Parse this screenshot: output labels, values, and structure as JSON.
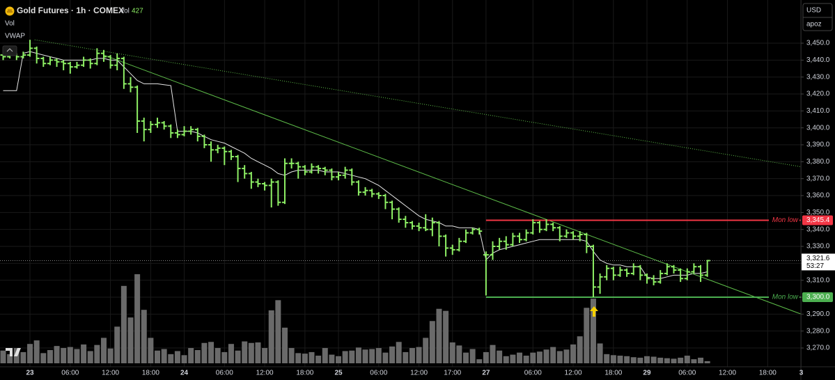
{
  "chart_data": {
    "type": "ohlc",
    "title": "Gold Futures · 1h · COMEX",
    "volume_label": "Vol",
    "indicators": [
      "Vol",
      "VWAP"
    ],
    "currency": "USD",
    "user": "apoz",
    "bar_color": "#8ef065",
    "volume_color": "#6a6a6a",
    "vwap_color": "#e8e8e8",
    "grid": true,
    "xlim": [
      -4.47,
      114.95
    ],
    "ylim": [
      3258.9,
      3475.5
    ],
    "volume_lim": [
      0,
      19000
    ],
    "yticks": [
      {
        "value": 3270,
        "label": "3,270.0"
      },
      {
        "value": 3280,
        "label": "3,280.0"
      },
      {
        "value": 3290,
        "label": "3,290.0"
      },
      {
        "value": 3300,
        "label": "3,300.0"
      },
      {
        "value": 3310,
        "label": "3,310.0"
      },
      {
        "value": 3320,
        "label": "3,320.0"
      },
      {
        "value": 3330,
        "label": "3,330.0"
      },
      {
        "value": 3340,
        "label": "3,340.0"
      },
      {
        "value": 3350,
        "label": "3,350.0"
      },
      {
        "value": 3360,
        "label": "3,360.0"
      },
      {
        "value": 3370,
        "label": "3,370.0"
      },
      {
        "value": 3380,
        "label": "3,380.0"
      },
      {
        "value": 3390,
        "label": "3,390.0"
      },
      {
        "value": 3400,
        "label": "3,400.0"
      },
      {
        "value": 3410,
        "label": "3,410.0"
      },
      {
        "value": 3420,
        "label": "3,420.0"
      },
      {
        "value": 3430,
        "label": "3,430.0"
      },
      {
        "value": 3440,
        "label": "3,440.0"
      },
      {
        "value": 3450,
        "label": "3,450.0"
      }
    ],
    "xticks": [
      {
        "value": 0,
        "label": "23"
      },
      {
        "value": 6,
        "label": "06:00"
      },
      {
        "value": 12,
        "label": "12:00"
      },
      {
        "value": 18,
        "label": "18:00"
      },
      {
        "value": 23,
        "label": "24"
      },
      {
        "value": 29,
        "label": "06:00"
      },
      {
        "value": 35,
        "label": "12:00"
      },
      {
        "value": 41,
        "label": "18:00"
      },
      {
        "value": 46,
        "label": "25"
      },
      {
        "value": 52,
        "label": "06:00"
      },
      {
        "value": 58,
        "label": "12:00"
      },
      {
        "value": 63,
        "label": "17:00"
      },
      {
        "value": 68,
        "label": "27"
      },
      {
        "value": 75,
        "label": "06:00"
      },
      {
        "value": 81,
        "label": "12:00"
      },
      {
        "value": 87,
        "label": "18:00"
      },
      {
        "value": 92,
        "label": "29"
      },
      {
        "value": 98,
        "label": "06:00"
      },
      {
        "value": 104,
        "label": "12:00"
      },
      {
        "value": 110,
        "label": "18:00"
      },
      {
        "value": 115,
        "label": "3"
      }
    ],
    "x": [
      -4,
      -3,
      -2,
      -1,
      0,
      1,
      2,
      3,
      4,
      5,
      6,
      7,
      8,
      9,
      10,
      11,
      12,
      13,
      14,
      15,
      16,
      17,
      18,
      19,
      20,
      21,
      22,
      23,
      24,
      25,
      26,
      27,
      28,
      29,
      30,
      31,
      32,
      33,
      34,
      35,
      36,
      37,
      38,
      39,
      40,
      41,
      42,
      43,
      44,
      45,
      46,
      47,
      48,
      49,
      50,
      51,
      52,
      53,
      54,
      55,
      56,
      57,
      58,
      59,
      60,
      61,
      62,
      63,
      64,
      65,
      66,
      67,
      68,
      69,
      70,
      71,
      72,
      73,
      74,
      75,
      76,
      77,
      78,
      79,
      80,
      81,
      82,
      83,
      84,
      85,
      86,
      87,
      88,
      89,
      90,
      91,
      92,
      93,
      94,
      95,
      96,
      97,
      98,
      99,
      100,
      101
    ],
    "ohlc": [
      [
        3443,
        3444,
        3440,
        3442
      ],
      [
        3442,
        3444,
        3441,
        3443
      ],
      [
        3443,
        3444,
        3440,
        3442
      ],
      [
        3442,
        3445,
        3441,
        3443
      ],
      [
        3443,
        3452,
        3442,
        3447
      ],
      [
        3447,
        3448,
        3438,
        3441
      ],
      [
        3441,
        3442,
        3436,
        3438
      ],
      [
        3438,
        3442,
        3437,
        3440
      ],
      [
        3440,
        3441,
        3436,
        3439
      ],
      [
        3439,
        3440,
        3434,
        3438
      ],
      [
        3438,
        3439,
        3432,
        3436
      ],
      [
        3436,
        3439,
        3435,
        3437
      ],
      [
        3437,
        3442,
        3436,
        3440
      ],
      [
        3440,
        3441,
        3435,
        3438
      ],
      [
        3438,
        3447,
        3437,
        3444
      ],
      [
        3444,
        3446,
        3439,
        3442
      ],
      [
        3442,
        3443,
        3435,
        3437
      ],
      [
        3437,
        3444,
        3434,
        3441
      ],
      [
        3441,
        3442,
        3423,
        3426
      ],
      [
        3426,
        3430,
        3421,
        3424
      ],
      [
        3424,
        3425,
        3397,
        3404
      ],
      [
        3404,
        3406,
        3392,
        3399
      ],
      [
        3399,
        3404,
        3397,
        3402
      ],
      [
        3402,
        3406,
        3400,
        3403
      ],
      [
        3403,
        3404,
        3399,
        3401
      ],
      [
        3401,
        3402,
        3394,
        3397
      ],
      [
        3397,
        3399,
        3394,
        3396
      ],
      [
        3396,
        3401,
        3395,
        3398
      ],
      [
        3398,
        3401,
        3396,
        3399
      ],
      [
        3399,
        3400,
        3392,
        3395
      ],
      [
        3395,
        3396,
        3388,
        3390
      ],
      [
        3390,
        3392,
        3380,
        3387
      ],
      [
        3387,
        3390,
        3385,
        3388
      ],
      [
        3388,
        3389,
        3378,
        3386
      ],
      [
        3386,
        3387,
        3381,
        3383
      ],
      [
        3383,
        3384,
        3368,
        3376
      ],
      [
        3376,
        3378,
        3370,
        3373
      ],
      [
        3373,
        3374,
        3364,
        3368
      ],
      [
        3368,
        3370,
        3365,
        3367
      ],
      [
        3367,
        3368,
        3363,
        3366
      ],
      [
        3366,
        3370,
        3353,
        3368
      ],
      [
        3368,
        3369,
        3354,
        3356
      ],
      [
        3356,
        3382,
        3355,
        3379
      ],
      [
        3379,
        3382,
        3376,
        3379
      ],
      [
        3379,
        3380,
        3370,
        3377
      ],
      [
        3377,
        3378,
        3372,
        3374
      ],
      [
        3374,
        3379,
        3373,
        3377
      ],
      [
        3377,
        3378,
        3373,
        3376
      ],
      [
        3376,
        3377,
        3372,
        3375
      ],
      [
        3375,
        3376,
        3369,
        3371
      ],
      [
        3371,
        3374,
        3369,
        3372
      ],
      [
        3372,
        3377,
        3370,
        3375
      ],
      [
        3375,
        3376,
        3366,
        3368
      ],
      [
        3368,
        3369,
        3360,
        3362
      ],
      [
        3362,
        3365,
        3360,
        3363
      ],
      [
        3363,
        3364,
        3359,
        3361
      ],
      [
        3361,
        3362,
        3358,
        3360
      ],
      [
        3360,
        3361,
        3352,
        3356
      ],
      [
        3356,
        3357,
        3346,
        3352
      ],
      [
        3352,
        3353,
        3344,
        3346
      ],
      [
        3346,
        3348,
        3341,
        3344
      ],
      [
        3344,
        3345,
        3340,
        3342
      ],
      [
        3342,
        3344,
        3339,
        3341
      ],
      [
        3341,
        3349,
        3339,
        3340
      ],
      [
        3340,
        3347,
        3336,
        3344
      ],
      [
        3344,
        3345,
        3330,
        3336
      ],
      [
        3336,
        3337,
        3324,
        3329
      ],
      [
        3329,
        3331,
        3325,
        3328
      ],
      [
        3328,
        3335,
        3327,
        3333
      ],
      [
        3333,
        3340,
        3332,
        3338
      ],
      [
        3338,
        3341,
        3337,
        3340
      ],
      [
        3340,
        3341,
        3337,
        3339
      ],
      [
        3325,
        3327,
        3301,
        3325
      ],
      [
        3325,
        3333,
        3322,
        3330
      ],
      [
        3330,
        3335,
        3328,
        3333
      ],
      [
        3333,
        3336,
        3328,
        3331
      ],
      [
        3331,
        3338,
        3330,
        3336
      ],
      [
        3336,
        3338,
        3332,
        3334
      ],
      [
        3334,
        3340,
        3333,
        3338
      ],
      [
        3338,
        3346,
        3337,
        3344
      ],
      [
        3344,
        3345,
        3338,
        3340
      ],
      [
        3340,
        3346,
        3339,
        3343
      ],
      [
        3343,
        3344,
        3339,
        3341
      ],
      [
        3341,
        3342,
        3333,
        3336
      ],
      [
        3336,
        3340,
        3335,
        3338
      ],
      [
        3338,
        3339,
        3334,
        3336
      ],
      [
        3336,
        3339,
        3333,
        3337
      ],
      [
        3337,
        3338,
        3326,
        3330
      ],
      [
        3330,
        3331,
        3300,
        3306
      ],
      [
        3306,
        3314,
        3302,
        3312
      ],
      [
        3312,
        3319,
        3310,
        3317
      ],
      [
        3317,
        3318,
        3310,
        3313
      ],
      [
        3313,
        3318,
        3312,
        3316
      ],
      [
        3316,
        3317,
        3312,
        3314
      ],
      [
        3314,
        3320,
        3313,
        3318
      ],
      [
        3318,
        3319,
        3310,
        3313
      ],
      [
        3313,
        3314,
        3308,
        3311
      ],
      [
        3311,
        3313,
        3307,
        3309
      ],
      [
        3309,
        3316,
        3308,
        3314
      ],
      [
        3314,
        3320,
        3313,
        3318
      ],
      [
        3318,
        3319,
        3314,
        3316
      ],
      [
        3316,
        3317,
        3309,
        3311
      ],
      [
        3311,
        3317,
        3310,
        3315
      ],
      [
        3315,
        3320,
        3314,
        3318
      ],
      [
        3318,
        3319,
        3309,
        3313
      ],
      [
        3313,
        3322,
        3312,
        3321.6
      ]
    ],
    "volume": [
      2500,
      1800,
      3000,
      2200,
      3800,
      4500,
      2000,
      2600,
      3400,
      3000,
      3200,
      2800,
      3700,
      2400,
      3600,
      5000,
      2900,
      7200,
      15200,
      9000,
      17500,
      10500,
      5000,
      2500,
      2800,
      1800,
      2400,
      1600,
      3000,
      2600,
      4000,
      4200,
      3000,
      2200,
      3800,
      2500,
      4300,
      4000,
      4100,
      3000,
      10400,
      12400,
      7000,
      3000,
      2000,
      1900,
      2200,
      1500,
      3000,
      1700,
      1400,
      2400,
      2500,
      3100,
      2700,
      2800,
      3000,
      2100,
      3300,
      4200,
      2200,
      3000,
      3200,
      5000,
      8300,
      10700,
      10300,
      4100,
      3500,
      2100,
      2800,
      800,
      2200,
      3600,
      2500,
      1400,
      1700,
      2100,
      1500,
      2100,
      2300,
      2700,
      3200,
      2400,
      2700,
      3700,
      5300,
      10900,
      12700,
      3900,
      1800,
      1600,
      1500,
      1400,
      1200,
      1100,
      1400,
      1300,
      1100,
      1000,
      900,
      1100,
      1500,
      800,
      1100,
      427
    ],
    "vwap": [
      3422,
      3422,
      3422,
      3444,
      3445,
      3444,
      3443,
      3442,
      3441,
      3440,
      3440,
      3440,
      3440,
      3440,
      3441,
      3441,
      3440,
      3440,
      3436,
      3432,
      3428,
      3426,
      3426,
      3426,
      3425.5,
      3425,
      3398,
      3398,
      3398,
      3397,
      3395,
      3393,
      3392,
      3391,
      3389,
      3387,
      3385,
      3382,
      3380,
      3378,
      3376,
      3373,
      3372,
      3374,
      3375,
      3375,
      3375,
      3375,
      3374,
      3374,
      3374,
      3373,
      3372,
      3371,
      3370,
      3368,
      3366,
      3363,
      3360,
      3357,
      3354,
      3351,
      3348,
      3346,
      3345,
      3344,
      3342,
      3342,
      3341,
      3341,
      3341,
      3340,
      3322,
      3326,
      3328,
      3329,
      3330,
      3331,
      3332,
      3333,
      3334,
      3334,
      3334,
      3334,
      3334,
      3334,
      3334,
      3333,
      3327,
      3322,
      3320,
      3319,
      3319,
      3318,
      3318,
      3318,
      3312,
      3311,
      3311,
      3312,
      3313,
      3313,
      3313,
      3314,
      3314,
      3315
    ],
    "trendlines": [
      {
        "points": [
          [
            0.7,
            3452
          ],
          [
            115,
            3377
          ]
        ],
        "color": "#5fbf4a",
        "dashed": true
      },
      {
        "points": [
          [
            11,
            3443
          ],
          [
            115,
            3290
          ]
        ],
        "color": "#5fbf4a",
        "dashed": false
      }
    ],
    "levels": [
      {
        "name": "Mon low",
        "value": 3345.4,
        "label": "3,345.4",
        "color": "#f23645",
        "from": 68
      },
      {
        "name": "Mon low",
        "value": 3300,
        "label": "3,300.0",
        "color": "#4caf50",
        "from": 68
      }
    ],
    "price_line": {
      "value": 3321.6,
      "label": "3,321.6",
      "countdown": "53:27"
    }
  }
}
